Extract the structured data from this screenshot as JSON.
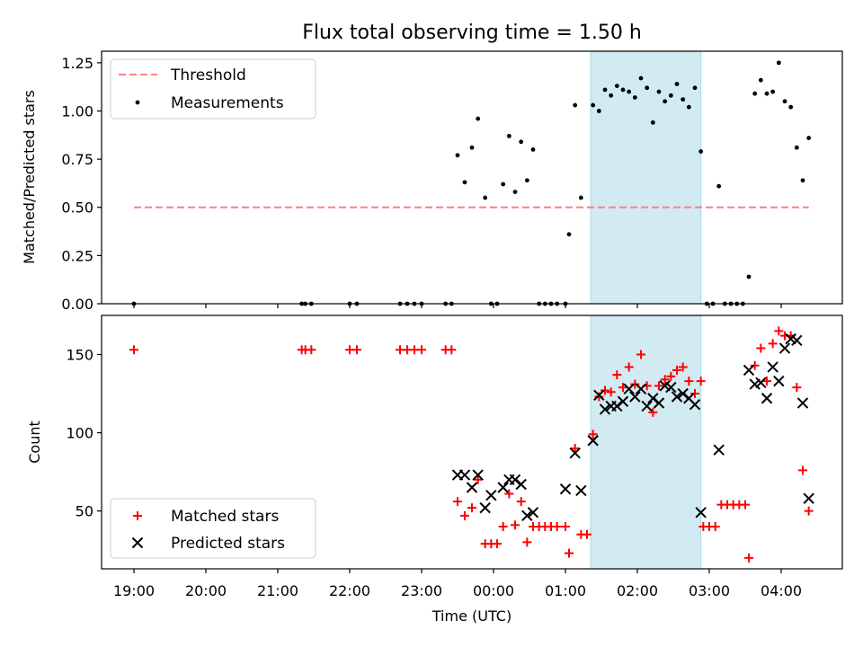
{
  "chart_data": [
    {
      "type": "scatter",
      "title": "Flux total observing time = 1.50 h",
      "xlabel": "",
      "ylabel": "Matched/Predicted stars",
      "ylim": [
        0,
        1.31
      ],
      "yticks": [
        "0.00",
        "0.25",
        "0.50",
        "0.75",
        "1.00",
        "1.25"
      ],
      "x_range_hours": [
        18.55,
        28.85
      ],
      "highlight_span": {
        "from": "01:21",
        "to": "02:53",
        "color": "#add8e6"
      },
      "legend_position": "upper left",
      "threshold": {
        "name": "Threshold",
        "y": 0.5,
        "x_from": "19:00",
        "x_to": "04:23",
        "color": "#ff7f7f",
        "style": "dashed"
      },
      "series": [
        {
          "name": "Measurements",
          "color": "#000000",
          "marker": "dot",
          "points": [
            [
              "19:00",
              0
            ],
            [
              "21:20",
              0
            ],
            [
              "21:23",
              0
            ],
            [
              "21:28",
              0
            ],
            [
              "22:00",
              0
            ],
            [
              "22:06",
              0
            ],
            [
              "22:42",
              0
            ],
            [
              "22:48",
              0
            ],
            [
              "22:54",
              0
            ],
            [
              "23:00",
              0
            ],
            [
              "23:20",
              0
            ],
            [
              "23:25",
              0
            ],
            [
              "23:30",
              0.77
            ],
            [
              "23:36",
              0.63
            ],
            [
              "23:42",
              0.81
            ],
            [
              "23:47",
              0.96
            ],
            [
              "23:53",
              0.55
            ],
            [
              "23:58",
              0
            ],
            [
              "00:03",
              0
            ],
            [
              "00:08",
              0.62
            ],
            [
              "00:13",
              0.87
            ],
            [
              "00:18",
              0.58
            ],
            [
              "00:23",
              0.84
            ],
            [
              "00:28",
              0.64
            ],
            [
              "00:33",
              0.8
            ],
            [
              "00:38",
              0
            ],
            [
              "00:43",
              0
            ],
            [
              "00:48",
              0
            ],
            [
              "00:53",
              0
            ],
            [
              "01:00",
              0
            ],
            [
              "01:03",
              0.36
            ],
            [
              "01:08",
              1.03
            ],
            [
              "01:13",
              0.55
            ],
            [
              "01:23",
              1.03
            ],
            [
              "01:28",
              1.0
            ],
            [
              "01:33",
              1.11
            ],
            [
              "01:38",
              1.08
            ],
            [
              "01:43",
              1.13
            ],
            [
              "01:48",
              1.11
            ],
            [
              "01:53",
              1.1
            ],
            [
              "01:58",
              1.07
            ],
            [
              "02:03",
              1.17
            ],
            [
              "02:08",
              1.12
            ],
            [
              "02:13",
              0.94
            ],
            [
              "02:18",
              1.1
            ],
            [
              "02:23",
              1.05
            ],
            [
              "02:28",
              1.08
            ],
            [
              "02:33",
              1.14
            ],
            [
              "02:38",
              1.06
            ],
            [
              "02:43",
              1.02
            ],
            [
              "02:48",
              1.12
            ],
            [
              "02:53",
              0.79
            ],
            [
              "02:58",
              0
            ],
            [
              "03:03",
              0
            ],
            [
              "03:08",
              0.61
            ],
            [
              "03:13",
              0
            ],
            [
              "03:18",
              0
            ],
            [
              "03:23",
              0
            ],
            [
              "03:28",
              0
            ],
            [
              "03:33",
              0.14
            ],
            [
              "03:38",
              1.09
            ],
            [
              "03:43",
              1.16
            ],
            [
              "03:48",
              1.09
            ],
            [
              "03:53",
              1.1
            ],
            [
              "03:58",
              1.25
            ],
            [
              "04:03",
              1.05
            ],
            [
              "04:08",
              1.02
            ],
            [
              "04:13",
              0.81
            ],
            [
              "04:18",
              0.64
            ],
            [
              "04:23",
              0.86
            ]
          ]
        }
      ]
    },
    {
      "type": "scatter",
      "title": "",
      "xlabel": "Time (UTC)",
      "ylabel": "Count",
      "ylim": [
        13,
        175
      ],
      "yticks": [
        "50",
        "100",
        "150"
      ],
      "x_range_hours": [
        18.55,
        28.85
      ],
      "xticks": [
        "19:00",
        "20:00",
        "21:00",
        "22:00",
        "23:00",
        "00:00",
        "01:00",
        "02:00",
        "03:00",
        "04:00"
      ],
      "highlight_span": {
        "from": "01:21",
        "to": "02:53",
        "color": "#add8e6"
      },
      "legend_position": "lower left",
      "series": [
        {
          "name": "Matched stars",
          "color": "#ff0000",
          "marker": "plus",
          "points": [
            [
              "19:00",
              153
            ],
            [
              "21:20",
              153
            ],
            [
              "21:23",
              153
            ],
            [
              "21:28",
              153
            ],
            [
              "22:00",
              153
            ],
            [
              "22:06",
              153
            ],
            [
              "22:42",
              153
            ],
            [
              "22:48",
              153
            ],
            [
              "22:54",
              153
            ],
            [
              "23:00",
              153
            ],
            [
              "23:20",
              153
            ],
            [
              "23:25",
              153
            ],
            [
              "23:30",
              56
            ],
            [
              "23:36",
              47
            ],
            [
              "23:42",
              52
            ],
            [
              "23:47",
              70
            ],
            [
              "23:53",
              29
            ],
            [
              "23:58",
              29
            ],
            [
              "00:03",
              29
            ],
            [
              "00:08",
              40
            ],
            [
              "00:13",
              61
            ],
            [
              "00:18",
              41
            ],
            [
              "00:23",
              56
            ],
            [
              "00:28",
              30
            ],
            [
              "00:33",
              40
            ],
            [
              "00:38",
              40
            ],
            [
              "00:43",
              40
            ],
            [
              "00:48",
              40
            ],
            [
              "00:53",
              40
            ],
            [
              "01:00",
              40
            ],
            [
              "01:03",
              23
            ],
            [
              "01:08",
              90
            ],
            [
              "01:13",
              35
            ],
            [
              "01:18",
              35
            ],
            [
              "01:23",
              99
            ],
            [
              "01:28",
              123
            ],
            [
              "01:33",
              127
            ],
            [
              "01:38",
              126
            ],
            [
              "01:43",
              137
            ],
            [
              "01:48",
              129
            ],
            [
              "01:53",
              142
            ],
            [
              "01:58",
              131
            ],
            [
              "02:03",
              150
            ],
            [
              "02:08",
              130
            ],
            [
              "02:13",
              113
            ],
            [
              "02:18",
              130
            ],
            [
              "02:23",
              134
            ],
            [
              "02:28",
              136
            ],
            [
              "02:33",
              140
            ],
            [
              "02:38",
              142
            ],
            [
              "02:43",
              133
            ],
            [
              "02:48",
              125
            ],
            [
              "02:53",
              133
            ],
            [
              "02:55",
              40
            ],
            [
              "03:00",
              40
            ],
            [
              "03:05",
              40
            ],
            [
              "03:10",
              54
            ],
            [
              "03:15",
              54
            ],
            [
              "03:20",
              54
            ],
            [
              "03:25",
              54
            ],
            [
              "03:30",
              54
            ],
            [
              "03:33",
              20
            ],
            [
              "03:38",
              143
            ],
            [
              "03:43",
              154
            ],
            [
              "03:48",
              133
            ],
            [
              "03:53",
              157
            ],
            [
              "03:58",
              165
            ],
            [
              "04:03",
              162
            ],
            [
              "04:08",
              162
            ],
            [
              "04:13",
              129
            ],
            [
              "04:18",
              76
            ],
            [
              "04:23",
              50
            ]
          ]
        },
        {
          "name": "Predicted stars",
          "color": "#000000",
          "marker": "x",
          "points": [
            [
              "23:30",
              73
            ],
            [
              "23:36",
              73
            ],
            [
              "23:42",
              65
            ],
            [
              "23:47",
              73
            ],
            [
              "23:53",
              52
            ],
            [
              "23:58",
              60
            ],
            [
              "00:08",
              65
            ],
            [
              "00:13",
              70
            ],
            [
              "00:18",
              70
            ],
            [
              "00:23",
              67
            ],
            [
              "00:28",
              47
            ],
            [
              "00:33",
              49
            ],
            [
              "01:00",
              64
            ],
            [
              "01:08",
              87
            ],
            [
              "01:13",
              63
            ],
            [
              "01:23",
              95
            ],
            [
              "01:28",
              124
            ],
            [
              "01:33",
              115
            ],
            [
              "01:38",
              117
            ],
            [
              "01:43",
              117
            ],
            [
              "01:48",
              120
            ],
            [
              "01:53",
              128
            ],
            [
              "01:58",
              123
            ],
            [
              "02:03",
              128
            ],
            [
              "02:08",
              117
            ],
            [
              "02:13",
              122
            ],
            [
              "02:18",
              119
            ],
            [
              "02:23",
              130
            ],
            [
              "02:28",
              129
            ],
            [
              "02:33",
              123
            ],
            [
              "02:38",
              125
            ],
            [
              "02:43",
              122
            ],
            [
              "02:48",
              118
            ],
            [
              "02:53",
              49
            ],
            [
              "03:08",
              89
            ],
            [
              "03:33",
              140
            ],
            [
              "03:38",
              131
            ],
            [
              "03:43",
              132
            ],
            [
              "03:48",
              122
            ],
            [
              "03:53",
              142
            ],
            [
              "03:58",
              133
            ],
            [
              "04:03",
              154
            ],
            [
              "04:08",
              160
            ],
            [
              "04:13",
              159
            ],
            [
              "04:18",
              119
            ],
            [
              "04:23",
              58
            ]
          ]
        }
      ]
    }
  ]
}
